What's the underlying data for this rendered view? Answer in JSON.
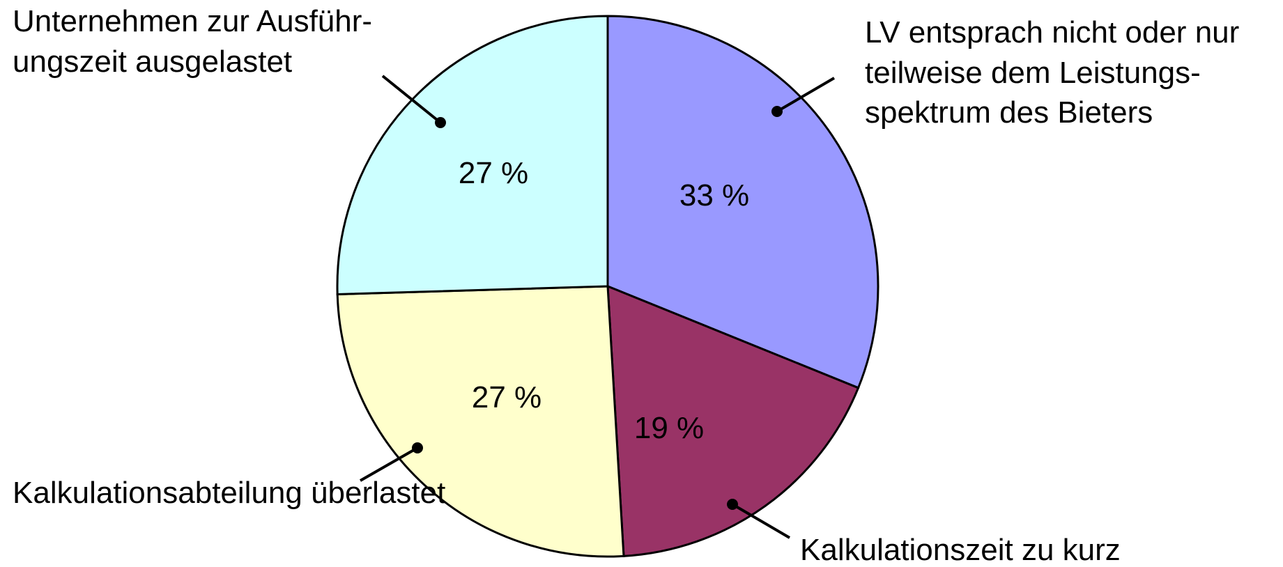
{
  "chart_data": {
    "type": "pie",
    "categories": [
      [
        "LV entsprach nicht oder nur",
        "teilweise dem Leistungs-",
        "spektrum des Bieters"
      ],
      [
        "Kalkulationszeit zu kurz"
      ],
      [
        "Kalkulationsabteilung überlastet"
      ],
      [
        "Unternehmen zur Ausführ-",
        "ungszeit ausgelastet"
      ]
    ],
    "values": [
      33,
      19,
      27,
      27
    ],
    "value_labels": [
      "33 %",
      "19 %",
      "27 %",
      "27 %"
    ],
    "colors": [
      "#9999ff",
      "#993366",
      "#ffffcc",
      "#ccffff"
    ]
  }
}
